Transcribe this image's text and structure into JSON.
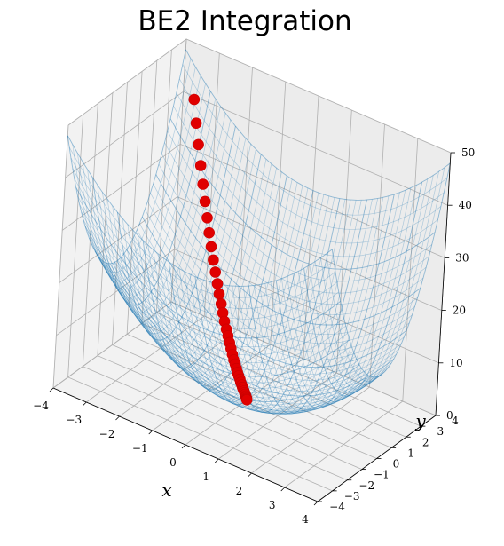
{
  "chart_data": {
    "type": "surface3d",
    "title": "BE2 Integration",
    "xlabel": "x",
    "ylabel": "y",
    "zlabel": "",
    "xlim": [
      -4,
      4
    ],
    "ylim": [
      -4,
      4
    ],
    "zlim": [
      0,
      50
    ],
    "x_ticks": [
      "−4",
      "−3",
      "−2",
      "−1",
      "0",
      "1",
      "2",
      "3",
      "4"
    ],
    "y_ticks": [
      "−4",
      "−3",
      "−2",
      "−1",
      "0",
      "1",
      "2",
      "3",
      "4"
    ],
    "z_ticks": [
      "0",
      "10",
      "20",
      "30",
      "40",
      "50"
    ],
    "grid": true,
    "surface": {
      "function": "z = x^2 + 2y^2",
      "style": "wireframe",
      "color": "#1f77b4",
      "alpha": 0.3
    },
    "trajectory": {
      "color": "#e00000",
      "marker": "circle",
      "points": [
        {
          "x": -3.55,
          "y": 3.72,
          "z": 40.3
        },
        {
          "x": -3.38,
          "y": 3.55,
          "z": 36.6
        },
        {
          "x": -3.21,
          "y": 3.39,
          "z": 33.3
        },
        {
          "x": -3.04,
          "y": 3.23,
          "z": 30.1
        },
        {
          "x": -2.88,
          "y": 3.08,
          "z": 27.3
        },
        {
          "x": -2.73,
          "y": 2.94,
          "z": 24.7
        },
        {
          "x": -2.58,
          "y": 2.8,
          "z": 22.3
        },
        {
          "x": -2.44,
          "y": 2.66,
          "z": 20.1
        },
        {
          "x": -2.3,
          "y": 2.53,
          "z": 18.1
        },
        {
          "x": -2.16,
          "y": 2.4,
          "z": 16.2
        },
        {
          "x": -2.03,
          "y": 2.28,
          "z": 14.5
        },
        {
          "x": -1.9,
          "y": 2.16,
          "z": 12.9
        },
        {
          "x": -1.78,
          "y": 2.04,
          "z": 11.5
        },
        {
          "x": -1.66,
          "y": 1.93,
          "z": 10.2
        },
        {
          "x": -1.55,
          "y": 1.82,
          "z": 9.0
        },
        {
          "x": -1.44,
          "y": 1.71,
          "z": 7.9
        },
        {
          "x": -1.33,
          "y": 1.61,
          "z": 6.9
        },
        {
          "x": -1.23,
          "y": 1.51,
          "z": 6.1
        },
        {
          "x": -1.13,
          "y": 1.41,
          "z": 5.3
        },
        {
          "x": -1.04,
          "y": 1.32,
          "z": 4.6
        },
        {
          "x": -0.95,
          "y": 1.23,
          "z": 3.9
        },
        {
          "x": -0.86,
          "y": 1.14,
          "z": 3.3
        },
        {
          "x": -0.78,
          "y": 1.06,
          "z": 2.9
        },
        {
          "x": -0.7,
          "y": 0.98,
          "z": 2.4
        },
        {
          "x": -0.63,
          "y": 0.9,
          "z": 2.0
        },
        {
          "x": -0.56,
          "y": 0.83,
          "z": 1.7
        },
        {
          "x": -0.49,
          "y": 0.76,
          "z": 1.4
        },
        {
          "x": -0.43,
          "y": 0.69,
          "z": 1.1
        },
        {
          "x": -0.37,
          "y": 0.63,
          "z": 0.9
        },
        {
          "x": -0.32,
          "y": 0.57,
          "z": 0.7
        },
        {
          "x": -0.27,
          "y": 0.51,
          "z": 0.6
        },
        {
          "x": -0.22,
          "y": 0.46,
          "z": 0.5
        },
        {
          "x": -0.18,
          "y": 0.41,
          "z": 0.4
        },
        {
          "x": -0.14,
          "y": 0.36,
          "z": 0.3
        },
        {
          "x": -0.1,
          "y": 0.31,
          "z": 0.2
        },
        {
          "x": -0.07,
          "y": 0.27,
          "z": 0.15
        },
        {
          "x": -0.04,
          "y": 0.23,
          "z": 0.1
        },
        {
          "x": -0.02,
          "y": 0.19,
          "z": 0.07
        },
        {
          "x": 0.0,
          "y": 0.16,
          "z": 0.05
        }
      ]
    }
  }
}
